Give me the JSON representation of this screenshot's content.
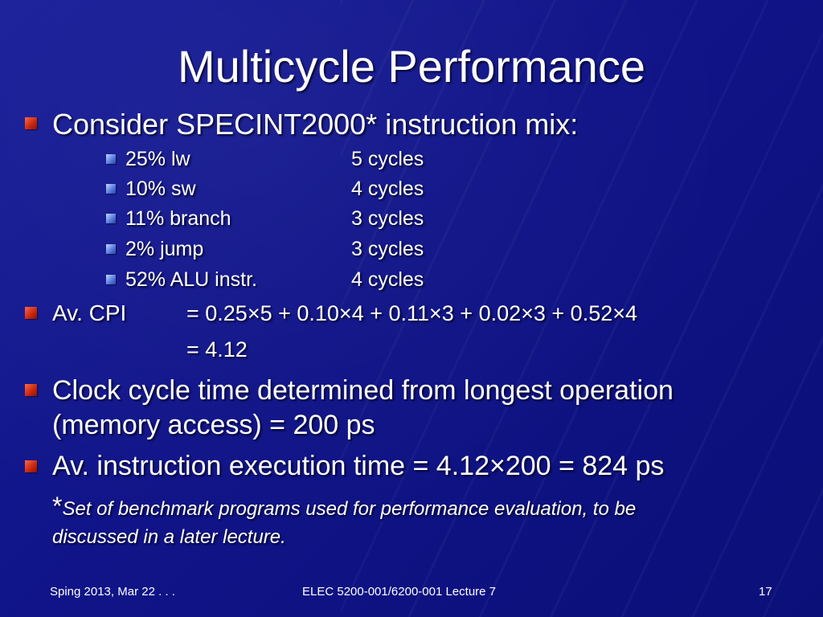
{
  "slide": {
    "title": "Multicycle Performance",
    "bullet1": "Consider SPECINT2000* instruction mix:",
    "mix": [
      {
        "label": "25% lw",
        "cycles": "5 cycles"
      },
      {
        "label": "10% sw",
        "cycles": "4 cycles"
      },
      {
        "label": "11% branch",
        "cycles": "3 cycles"
      },
      {
        "label": "2% jump",
        "cycles": "3 cycles"
      },
      {
        "label": "52% ALU instr.",
        "cycles": "4 cycles"
      }
    ],
    "cpi_label": "Av. CPI",
    "cpi_expr": "= 0.25×5 + 0.10×4 + 0.11×3 + 0.02×3 + 0.52×4",
    "cpi_result": "= 4.12",
    "clock_line1": "Clock cycle time determined from longest operation",
    "clock_line2": "(memory access) = 200 ps",
    "exec_time": "Av. instruction execution time = 4.12×200 = 824 ps",
    "footnote_star": "*",
    "footnote_line1": "Set of benchmark programs used for performance evaluation, to be",
    "footnote_line2": "discussed in a later lecture."
  },
  "footer": {
    "date": "Sping 2013, Mar 22 . . .",
    "course": "ELEC 5200-001/6200-001 Lecture 7",
    "page": "17"
  },
  "colors": {
    "background": "#101488",
    "bullet_main": "#cc2a10",
    "bullet_sub": "#5b7fe0",
    "text": "#ffffff"
  }
}
